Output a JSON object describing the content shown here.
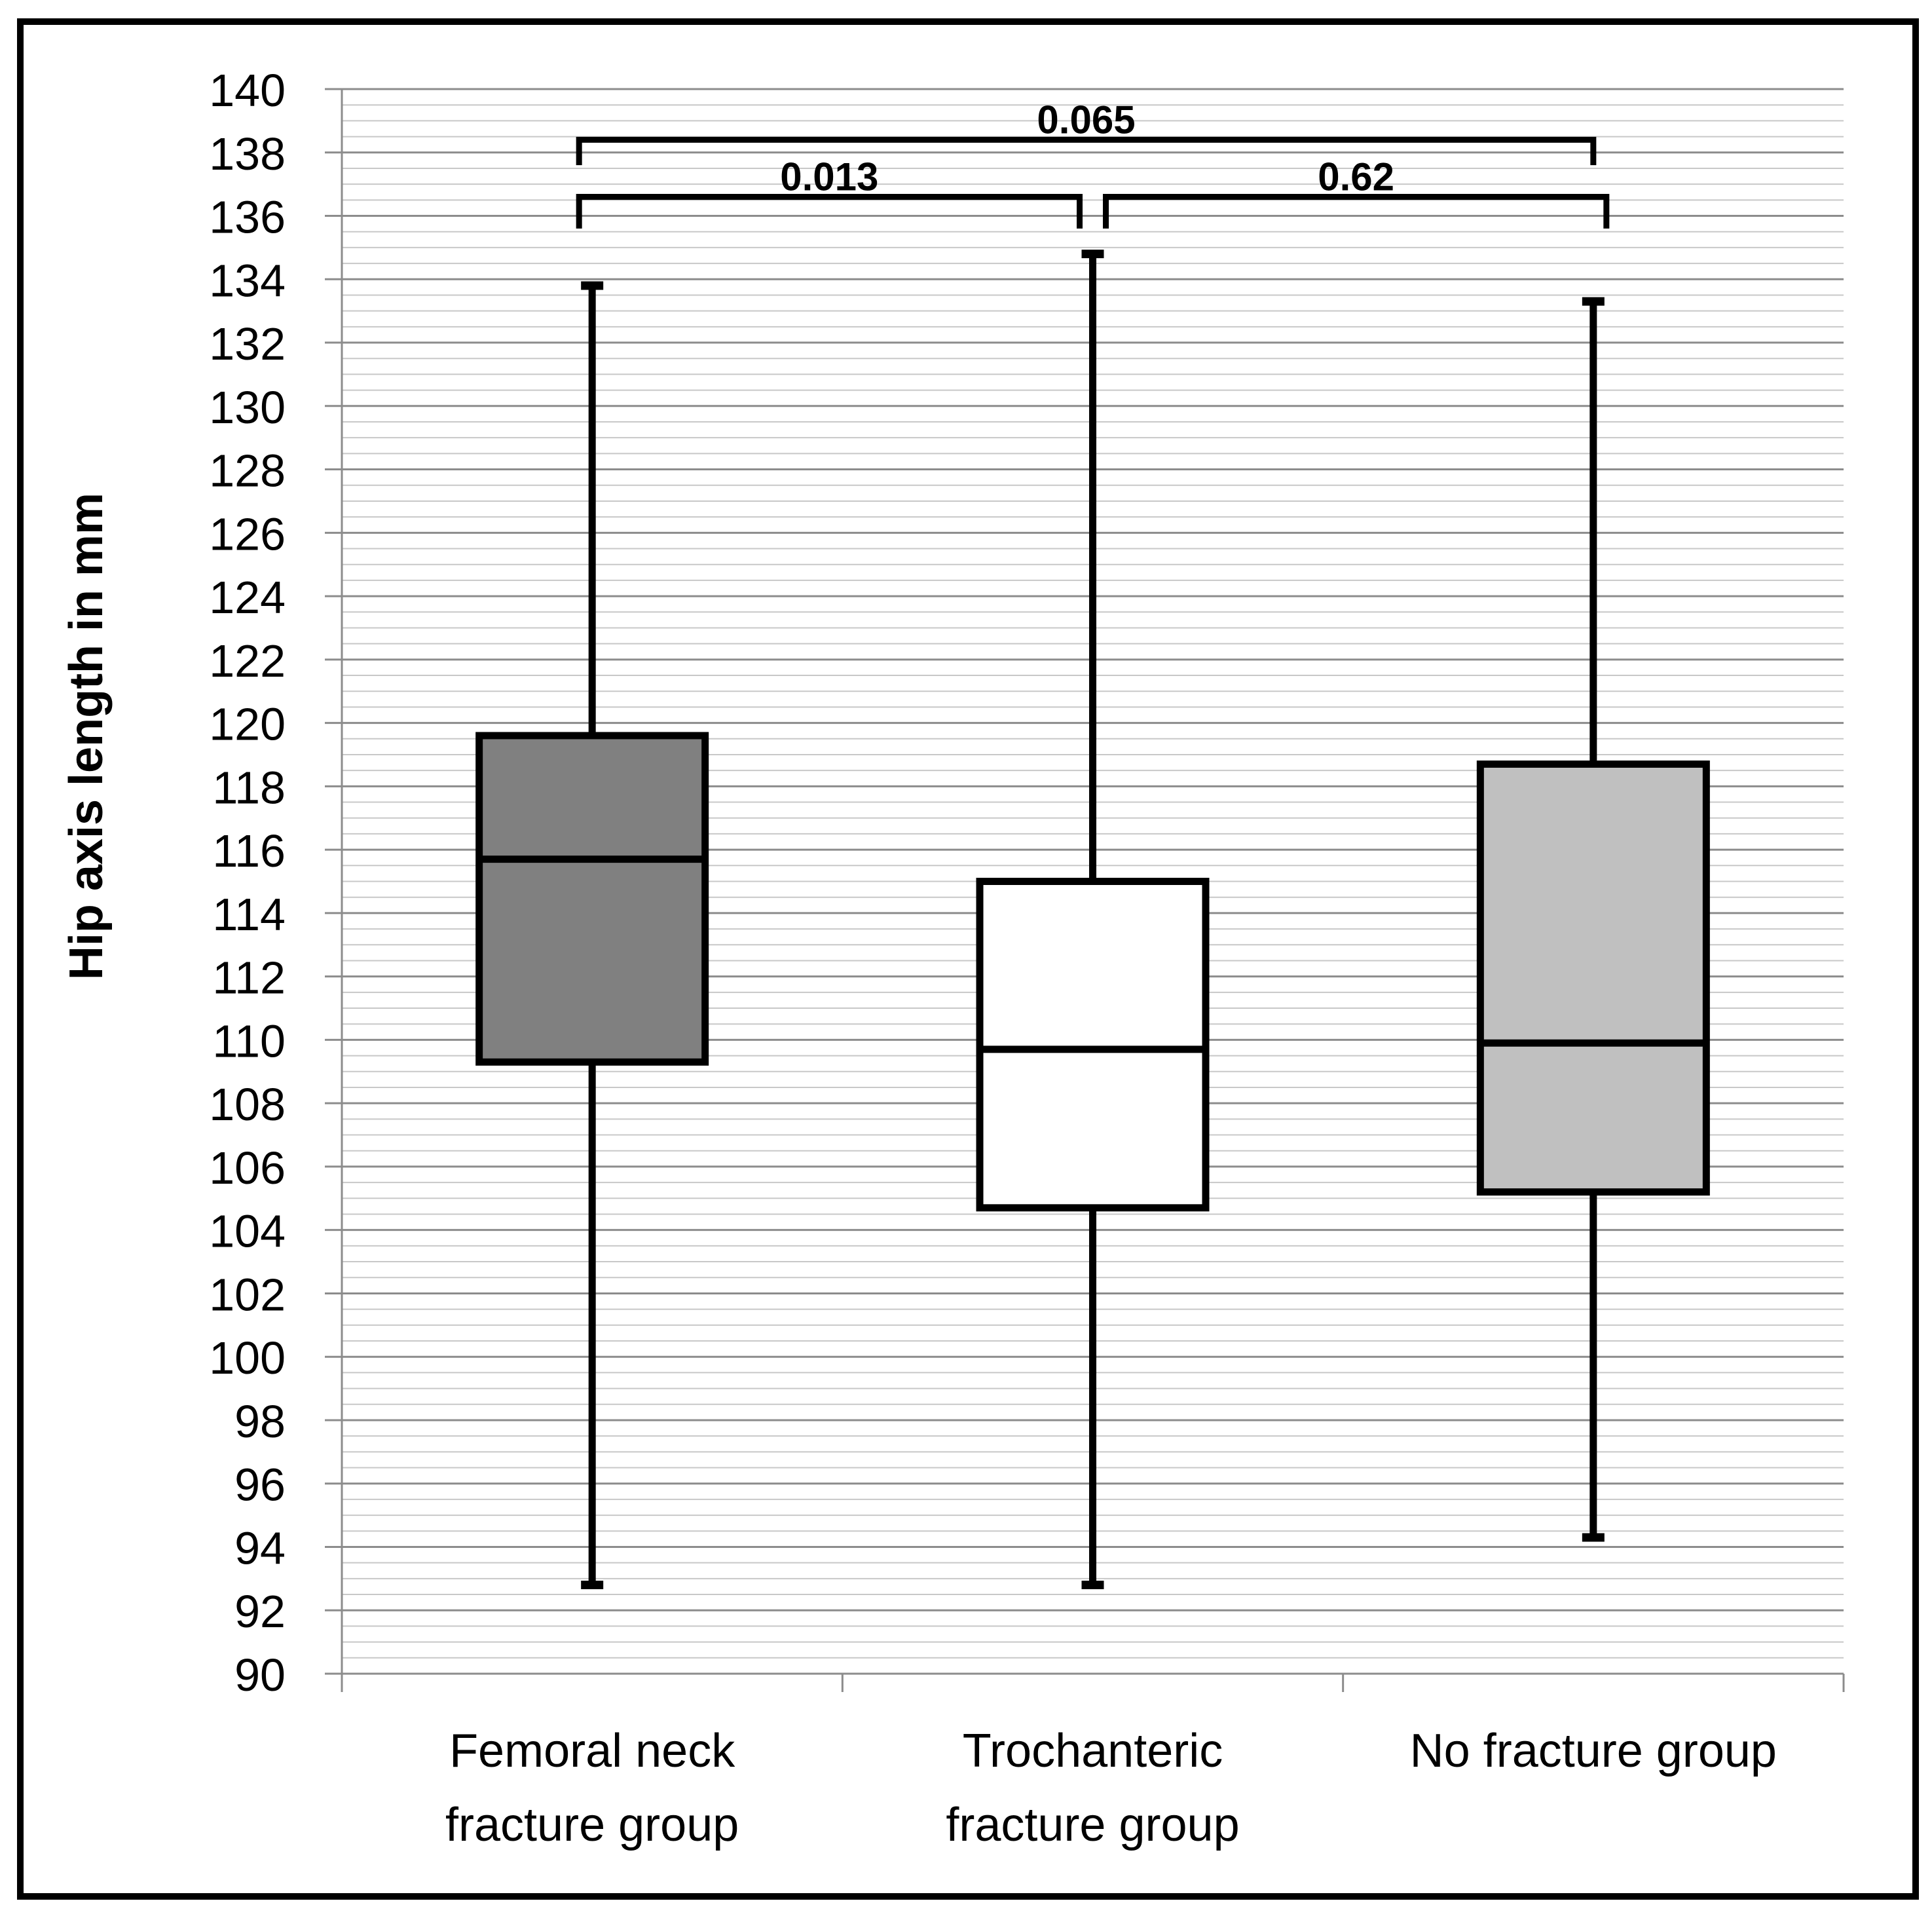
{
  "chart_data": {
    "type": "box",
    "title": "",
    "xlabel": "",
    "ylabel": "Hip axis length in mm",
    "ylim": [
      90,
      140
    ],
    "y_major_ticks": [
      90,
      92,
      94,
      96,
      98,
      100,
      102,
      104,
      106,
      108,
      110,
      112,
      114,
      116,
      118,
      120,
      122,
      124,
      126,
      128,
      130,
      132,
      134,
      136,
      138,
      140
    ],
    "y_minor_step": 0.5,
    "grid": true,
    "categories": [
      [
        "Femoral neck",
        "fracture group"
      ],
      [
        "Trochanteric",
        "fracture group"
      ],
      [
        "No fracture group"
      ]
    ],
    "boxes": [
      {
        "min": 92.8,
        "q1": 109.3,
        "median": 115.7,
        "q3": 119.6,
        "max": 133.8,
        "fill": "#808080"
      },
      {
        "min": 92.8,
        "q1": 104.7,
        "median": 109.7,
        "q3": 115.0,
        "max": 134.8,
        "fill": "#ffffff"
      },
      {
        "min": 94.3,
        "q1": 105.2,
        "median": 109.9,
        "q3": 118.7,
        "max": 133.3,
        "fill": "#c0c0c0"
      }
    ],
    "significance_brackets": [
      {
        "from": 0,
        "to": 2,
        "label": "0.065",
        "level": 138.4,
        "drop_to": 137.6
      },
      {
        "from": 0,
        "to": 1,
        "label": "0.013",
        "level": 136.6,
        "drop_to": 135.6
      },
      {
        "from": 1,
        "to": 2,
        "label": "0.62",
        "level": 136.6,
        "drop_to": 135.6
      }
    ]
  }
}
